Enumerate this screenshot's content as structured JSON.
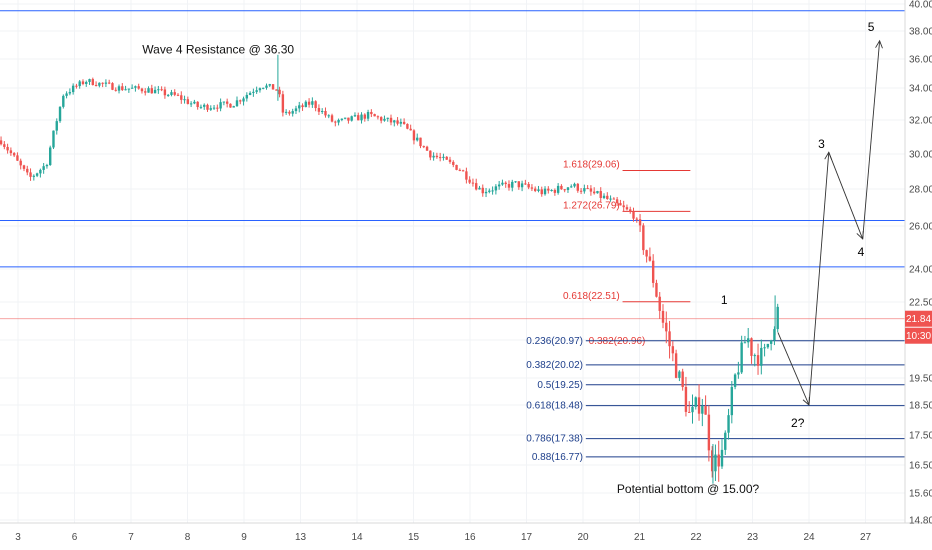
{
  "chart_data": {
    "type": "candlestick",
    "y_range": [
      14.8,
      40.0
    ],
    "x_range": [
      2.7,
      28.0
    ],
    "y_ticks": [
      "40.00",
      "38.00",
      "36.00",
      "34.00",
      "32.00",
      "30.00",
      "28.00",
      "26.00",
      "24.00",
      "22.50",
      "21.00",
      "19.50",
      "18.50",
      "17.50",
      "16.50",
      "15.60",
      "14.80"
    ],
    "x_ticks": [
      {
        "label": "3",
        "x": 3
      },
      {
        "label": "6",
        "x": 4
      },
      {
        "label": "7",
        "x": 5
      },
      {
        "label": "8",
        "x": 6
      },
      {
        "label": "9",
        "x": 7
      },
      {
        "label": "13",
        "x": 8
      },
      {
        "label": "14",
        "x": 9
      },
      {
        "label": "15",
        "x": 10
      },
      {
        "label": "16",
        "x": 11
      },
      {
        "label": "17",
        "x": 12
      },
      {
        "label": "20",
        "x": 13
      },
      {
        "label": "21",
        "x": 14
      },
      {
        "label": "22",
        "x": 15
      },
      {
        "label": "23",
        "x": 16
      },
      {
        "label": "24",
        "x": 17
      },
      {
        "label": "27",
        "x": 18
      }
    ],
    "price_path": [
      [
        2.7,
        30.8
      ],
      [
        3.2,
        28.6
      ],
      [
        3.5,
        29.4
      ],
      [
        3.8,
        33.6
      ],
      [
        4.2,
        34.5
      ],
      [
        4.8,
        34.0
      ],
      [
        5.3,
        33.9
      ],
      [
        5.8,
        33.5
      ],
      [
        6.2,
        32.8
      ],
      [
        6.8,
        33.0
      ],
      [
        7.3,
        34.2
      ],
      [
        7.6,
        33.9
      ],
      [
        7.7,
        32.3
      ],
      [
        8.2,
        33.1
      ],
      [
        8.6,
        31.8
      ],
      [
        9.2,
        32.3
      ],
      [
        9.8,
        31.7
      ],
      [
        10.3,
        30.0
      ],
      [
        10.8,
        29.2
      ],
      [
        11.2,
        27.9
      ],
      [
        11.8,
        28.3
      ],
      [
        12.3,
        27.8
      ],
      [
        12.8,
        28.2
      ],
      [
        13.4,
        27.5
      ],
      [
        13.9,
        26.6
      ],
      [
        14.2,
        24.0
      ],
      [
        14.4,
        21.8
      ],
      [
        14.7,
        19.5
      ],
      [
        14.9,
        18.0
      ],
      [
        15.1,
        18.8
      ],
      [
        15.3,
        16.5
      ],
      [
        15.5,
        17.0
      ],
      [
        15.7,
        19.6
      ],
      [
        15.9,
        21.2
      ],
      [
        16.0,
        20.5
      ],
      [
        16.2,
        20.3
      ],
      [
        16.35,
        21.5
      ],
      [
        16.45,
        22.2
      ],
      [
        16.5,
        21.84
      ]
    ],
    "spikes": [
      {
        "x": 7.6,
        "high": 36.3,
        "low": 33.2
      },
      {
        "x": 15.3,
        "high": 17.2,
        "low": 15.9
      },
      {
        "x": 16.4,
        "high": 22.8,
        "low": 21.2
      }
    ],
    "current_price": "21.84",
    "countdown": "10:30",
    "horizontal_levels": [
      39.5,
      26.3,
      24.1
    ],
    "current_level": 21.84,
    "fib_extensions": [
      {
        "label": "1.618(29.06)",
        "value": 29.06
      },
      {
        "label": "1.272(26.79)",
        "value": 26.79
      },
      {
        "label": "0.618(22.51)",
        "value": 22.51
      },
      {
        "label": "0.382(20.96)",
        "value": 20.96
      }
    ],
    "fib_retracements": [
      {
        "label": "0.236(20.97)",
        "value": 20.97
      },
      {
        "label": "0.382(20.02)",
        "value": 20.02
      },
      {
        "label": "0.5(19.25)",
        "value": 19.25
      },
      {
        "label": "0.618(18.48)",
        "value": 18.48
      },
      {
        "label": "0.786(17.38)",
        "value": 17.38
      },
      {
        "label": "0.88(16.77)",
        "value": 16.77
      }
    ],
    "wave_path": [
      [
        16.45,
        21.3
      ],
      [
        17.0,
        18.5
      ],
      [
        17.35,
        30.1
      ],
      [
        17.95,
        25.4
      ],
      [
        18.25,
        37.3
      ]
    ],
    "wave_labels": [
      {
        "label": "1",
        "x": 15.5,
        "y": 22.6
      },
      {
        "label": "2?",
        "x": 16.8,
        "y": 17.9
      },
      {
        "label": "3",
        "x": 17.22,
        "y": 30.6
      },
      {
        "label": "4",
        "x": 17.92,
        "y": 24.8
      },
      {
        "label": "5",
        "x": 18.1,
        "y": 38.3
      }
    ],
    "annotations": [
      {
        "text": "Wave 4 Resistance @ 36.30",
        "x": 5.2,
        "y": 36.4
      },
      {
        "text": "Potential bottom @ 15.00?",
        "x": 13.6,
        "y": 15.6
      }
    ],
    "colors": {
      "up": "#26a69a",
      "down": "#ef5350",
      "level_line": "#2962ff",
      "fib_extension": "#e53935",
      "fib_retracement": "#1e3f8b",
      "price_badge": "#ef5350",
      "countdown_badge": "#ef5350"
    }
  }
}
